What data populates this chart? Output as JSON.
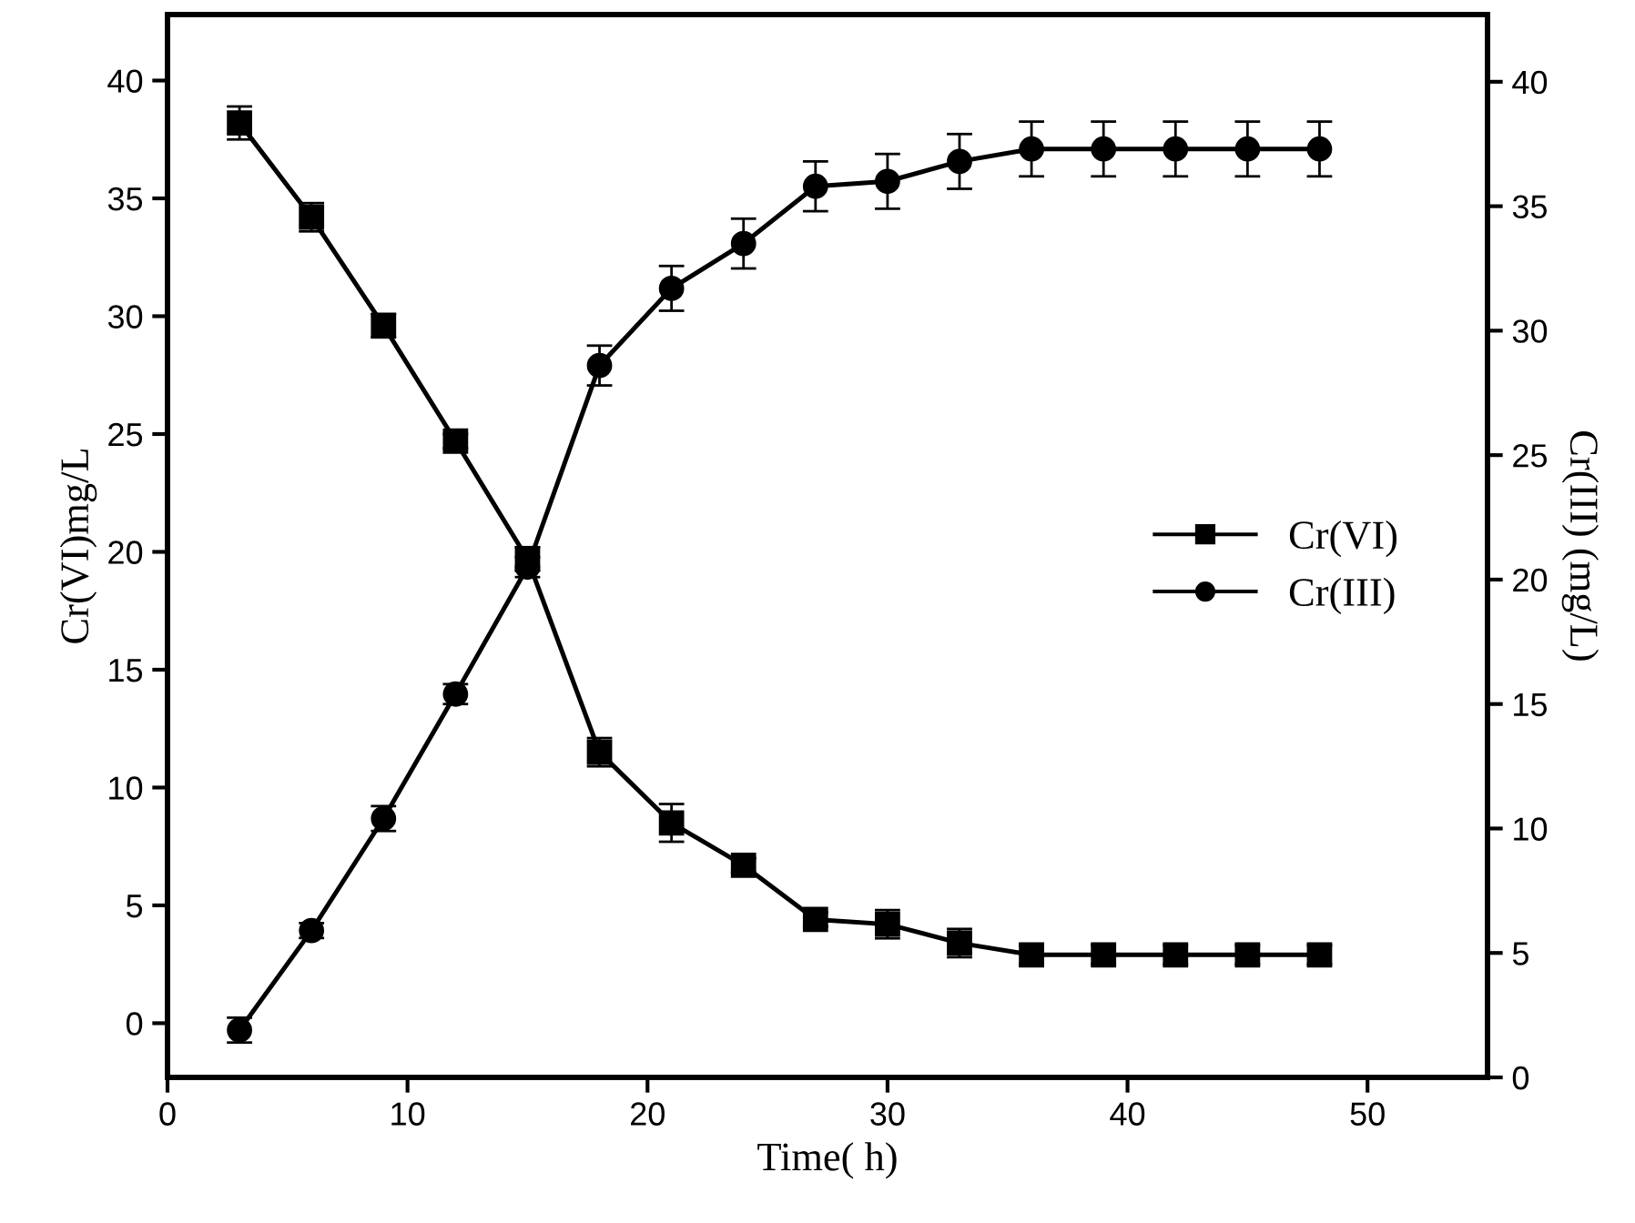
{
  "chart_data": {
    "type": "line",
    "xlabel": "Time( h)",
    "ylabel": "Cr(VI)mg/L",
    "y2label": "Cr(III) (mg/L)",
    "x": [
      3,
      6,
      9,
      12,
      15,
      18,
      21,
      24,
      27,
      30,
      33,
      36,
      39,
      42,
      45,
      48
    ],
    "series": [
      {
        "name": "Cr(VI)",
        "color": "#000000",
        "marker": "square",
        "values": [
          38.2,
          34.2,
          29.6,
          24.7,
          19.7,
          11.5,
          8.5,
          6.7,
          4.4,
          4.2,
          3.4,
          2.9,
          2.9,
          2.9,
          2.9,
          2.9
        ],
        "errors": [
          0.7,
          0.6,
          0.5,
          0.3,
          0.5,
          0.6,
          0.8,
          0.3,
          0.3,
          0.6,
          0.6,
          0.4,
          0.4,
          0.4,
          0.4,
          0.4
        ]
      },
      {
        "name": "Cr(III)",
        "color": "#000000",
        "marker": "circle",
        "axis": "y2",
        "values": [
          1.9,
          5.9,
          10.4,
          15.4,
          20.5,
          28.6,
          31.7,
          33.5,
          35.8,
          36.0,
          36.8,
          37.3,
          37.3,
          37.3,
          37.3,
          37.3
        ],
        "errors": [
          0.5,
          0.3,
          0.5,
          0.4,
          0.4,
          0.8,
          0.9,
          1.0,
          1.0,
          1.1,
          1.1,
          1.1,
          1.1,
          1.1,
          1.1,
          1.1
        ]
      }
    ],
    "xlim": [
      0,
      55
    ],
    "xticks": [
      0,
      10,
      20,
      30,
      40,
      50
    ],
    "ylim": [
      -2.3,
      42.8
    ],
    "yticks": [
      0,
      5,
      10,
      15,
      20,
      25,
      30,
      35,
      40
    ],
    "y2lim": [
      0,
      42.7
    ],
    "y2ticks": [
      0,
      5,
      10,
      15,
      20,
      25,
      30,
      35,
      40
    ],
    "grid": false,
    "legend": "right",
    "line_style": "solid"
  }
}
